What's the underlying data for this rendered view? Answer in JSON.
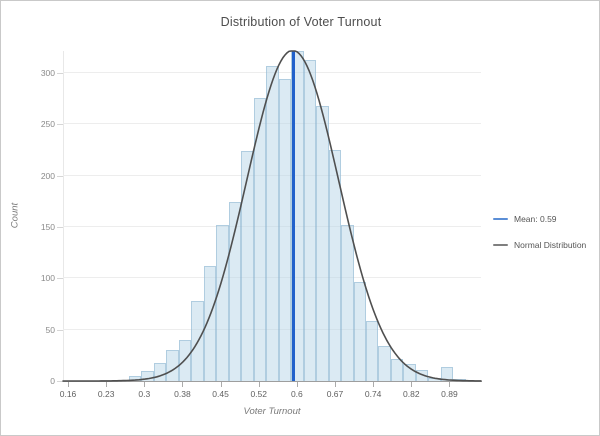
{
  "chart_data": {
    "type": "bar",
    "subtype": "histogram-with-normal-curve",
    "title": "Distribution of Voter Turnout",
    "xlabel": "Voter Turnout",
    "ylabel": "Count",
    "grid": "horizontal",
    "x_axis": {
      "min": 0.1504,
      "max": 0.9504,
      "ticks": [
        {
          "label": "0.16",
          "value": 0.16
        },
        {
          "label": "0.23",
          "value": 0.233
        },
        {
          "label": "0.3",
          "value": 0.306
        },
        {
          "label": "0.38",
          "value": 0.379
        },
        {
          "label": "0.45",
          "value": 0.452
        },
        {
          "label": "0.52",
          "value": 0.525
        },
        {
          "label": "0.6",
          "value": 0.598
        },
        {
          "label": "0.67",
          "value": 0.671
        },
        {
          "label": "0.74",
          "value": 0.744
        },
        {
          "label": "0.82",
          "value": 0.817
        },
        {
          "label": "0.89",
          "value": 0.89
        }
      ]
    },
    "y_axis": {
      "min": 0,
      "max": 321.4,
      "ticks": [
        0,
        50,
        100,
        150,
        200,
        250,
        300
      ]
    },
    "histogram": {
      "bin_start": 0.2762,
      "bin_width": 0.0239,
      "counts": [
        5,
        10,
        18,
        30,
        40,
        78,
        112,
        152,
        174,
        224,
        276,
        307,
        294,
        321,
        313,
        268,
        225,
        152,
        96,
        58,
        34,
        21,
        17,
        11,
        3,
        14,
        2
      ],
      "fill_color": "rgba(183,214,232,0.5)",
      "stroke_color": "rgba(141,181,207,0.55)"
    },
    "normal_curve": {
      "amplitude": 322,
      "mean": 0.59,
      "sigma": 0.088,
      "color": "#4f4f4f"
    },
    "mean_line": {
      "value": 0.59,
      "color": "#2161cb"
    },
    "legend": {
      "position": "right",
      "items": [
        {
          "label": "Mean: 0.59",
          "color": "#5b8ed6"
        },
        {
          "label": "Normal Distribution",
          "color": "#7f7f7f"
        }
      ]
    }
  }
}
